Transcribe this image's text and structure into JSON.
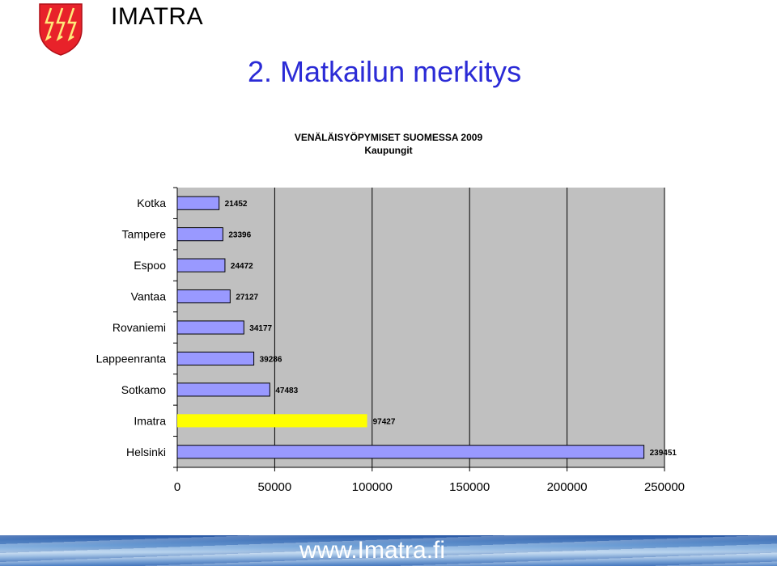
{
  "header": {
    "brand": "IMATRA",
    "slide_title": "2. Matkailun merkitys"
  },
  "footer": {
    "url": "www.Imatra.fi"
  },
  "colors": {
    "bar": "#9999ff",
    "highlight_bar": "#ffff00",
    "plot_background": "#c0c0c0",
    "title_blue": "#2b2bd6"
  },
  "chart_data": {
    "type": "bar",
    "orientation": "horizontal",
    "title": "VENÄLÄISYÖPYMISET SUOMESSA 2009",
    "subtitle": "Kaupungit",
    "categories": [
      "Kotka",
      "Tampere",
      "Espoo",
      "Vantaa",
      "Rovaniemi",
      "Lappeenranta",
      "Sotkamo",
      "Imatra",
      "Helsinki"
    ],
    "values": [
      21452,
      23396,
      24472,
      27127,
      34177,
      39286,
      47483,
      97427,
      239451
    ],
    "data_labels": [
      "21452",
      "23396",
      "24472",
      "27127",
      "34177",
      "39286",
      "47483",
      "97427",
      "239451"
    ],
    "highlighted_category": "Imatra",
    "xlim": [
      0,
      250000
    ],
    "x_ticks": [
      0,
      50000,
      100000,
      150000,
      200000,
      250000
    ],
    "x_tick_labels": [
      "0",
      "50000",
      "100000",
      "150000",
      "200000",
      "250000"
    ],
    "grid": "vertical",
    "legend": "none"
  }
}
